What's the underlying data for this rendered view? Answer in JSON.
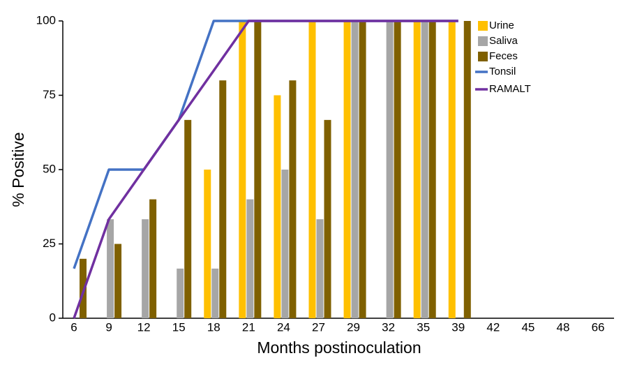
{
  "chart_data": {
    "type": "bar-line",
    "x_label": "Months postinoculation",
    "y_label": "% Positive",
    "categories": [
      "6",
      "9",
      "12",
      "15",
      "18",
      "21",
      "24",
      "27",
      "29",
      "32",
      "35",
      "39",
      "42",
      "45",
      "48",
      "66"
    ],
    "series": [
      {
        "name": "Urine",
        "kind": "bar",
        "color": "#ffc000",
        "values": [
          0,
          0,
          0,
          0,
          50,
          100,
          75,
          100,
          100,
          0,
          100,
          100,
          null,
          null,
          null,
          null
        ]
      },
      {
        "name": "Saliva",
        "kind": "bar",
        "color": "#a6a6a6",
        "values": [
          0,
          33.3,
          33.3,
          16.7,
          16.7,
          40,
          50,
          33.3,
          100,
          100,
          100,
          0,
          null,
          null,
          null,
          null
        ]
      },
      {
        "name": "Feces",
        "kind": "bar",
        "color": "#7f6000",
        "values": [
          20,
          25,
          40,
          66.7,
          80,
          100,
          80,
          66.7,
          100,
          100,
          100,
          100,
          null,
          null,
          null,
          null
        ]
      },
      {
        "name": "Tonsil",
        "kind": "line",
        "color": "#4472c4",
        "values": [
          16.7,
          50,
          50,
          66.7,
          100,
          100,
          100,
          100,
          100,
          100,
          100,
          100,
          null,
          null,
          null,
          null
        ]
      },
      {
        "name": "RAMALT",
        "kind": "line",
        "color": "#7030a0",
        "values": [
          0,
          33.3,
          50,
          66.7,
          83.3,
          100,
          100,
          100,
          100,
          100,
          100,
          100,
          null,
          null,
          null,
          null
        ]
      }
    ],
    "ylim": [
      0,
      100
    ],
    "yticks": [
      0,
      25,
      50,
      75,
      100
    ],
    "grid": false,
    "legend": "top-right"
  }
}
